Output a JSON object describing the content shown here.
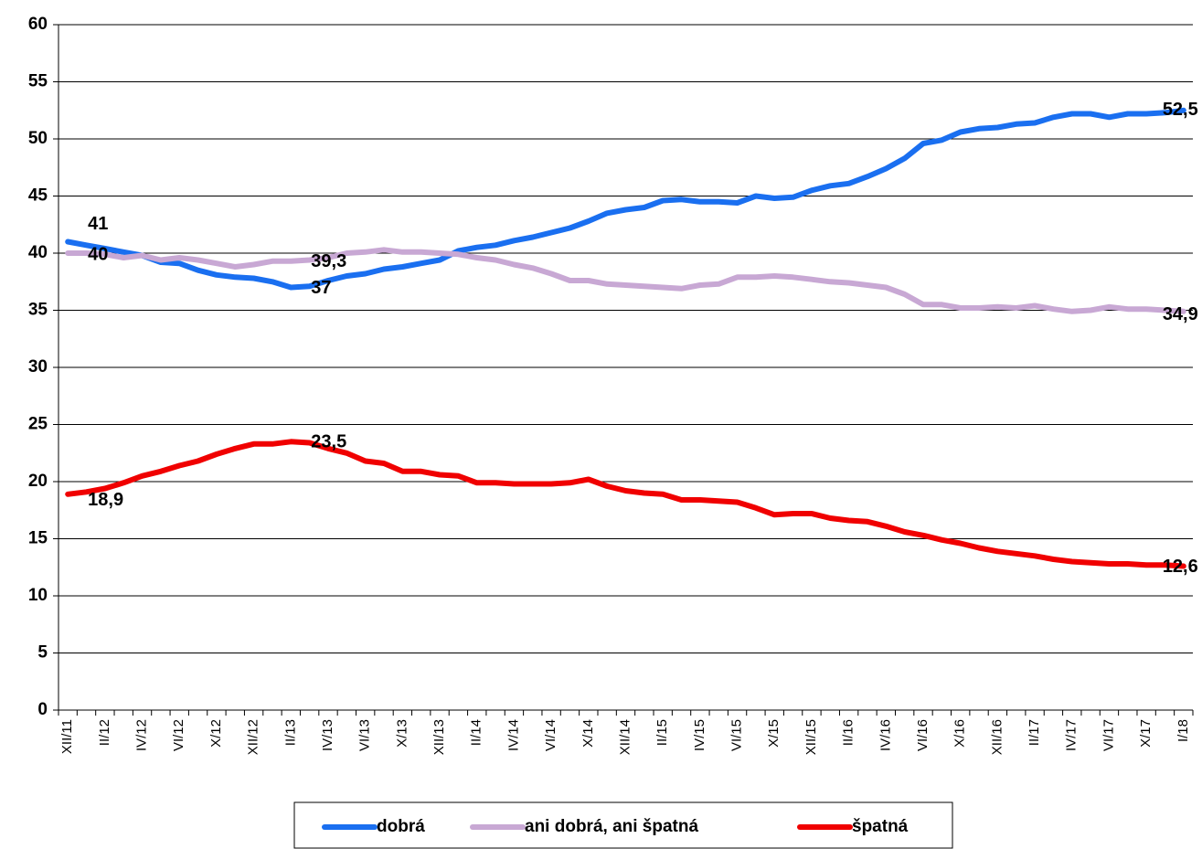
{
  "chart_data": {
    "type": "line",
    "categories": [
      "XII/11",
      null,
      "II/12",
      null,
      "IV/12",
      null,
      "VI/12",
      null,
      "X/12",
      null,
      "XII/12",
      null,
      "II/13",
      null,
      "IV/13",
      null,
      "VI/13",
      null,
      "X/13",
      null,
      "XII/13",
      null,
      "II/14",
      null,
      "IV/14",
      null,
      "VI/14",
      null,
      "X/14",
      null,
      "XII/14",
      null,
      "II/15",
      null,
      "IV/15",
      null,
      "VI/15",
      null,
      "X/15",
      null,
      "XII/15",
      null,
      "II/16",
      null,
      "IV/16",
      null,
      "VI/16",
      null,
      "X/16",
      null,
      "XII/16",
      null,
      "II/17",
      null,
      "IV/17",
      null,
      "VI/17",
      null,
      "X/17",
      null,
      "I/18"
    ],
    "series": [
      {
        "name": "dobrá",
        "color": "#1a6ff0",
        "values": [
          41,
          40.7,
          40.4,
          40.1,
          39.8,
          39.2,
          39.1,
          38.5,
          38.1,
          37.9,
          37.8,
          37.5,
          37.0,
          37.1,
          37.6,
          38.0,
          38.2,
          38.6,
          38.8,
          39.1,
          39.4,
          40.2,
          40.5,
          40.7,
          41.1,
          41.4,
          41.8,
          42.2,
          42.8,
          43.5,
          43.8,
          44.0,
          44.6,
          44.7,
          44.5,
          44.5,
          44.4,
          45.0,
          44.8,
          44.9,
          45.5,
          45.9,
          46.1,
          46.7,
          47.4,
          48.3,
          49.6,
          49.9,
          50.6,
          50.9,
          51.0,
          51.3,
          51.4,
          51.9,
          52.2,
          52.2,
          51.9,
          52.2,
          52.2,
          52.3,
          52.5
        ],
        "labels": [
          {
            "index": 0,
            "text": "41"
          },
          {
            "index": 12,
            "text": "37"
          },
          {
            "index": 60,
            "text": "52,5"
          }
        ]
      },
      {
        "name": "ani dobrá, ani špatná",
        "color": "#c8a8d4",
        "values": [
          40,
          40,
          39.9,
          39.6,
          39.8,
          39.4,
          39.6,
          39.4,
          39.1,
          38.8,
          39.0,
          39.3,
          39.3,
          39.4,
          39.6,
          40.0,
          40.1,
          40.3,
          40.1,
          40.1,
          40.0,
          39.9,
          39.6,
          39.4,
          39.0,
          38.7,
          38.2,
          37.6,
          37.6,
          37.3,
          37.2,
          37.1,
          37.0,
          36.9,
          37.2,
          37.3,
          37.9,
          37.9,
          38.0,
          37.9,
          37.7,
          37.5,
          37.4,
          37.2,
          37.0,
          36.4,
          35.5,
          35.5,
          35.2,
          35.2,
          35.3,
          35.2,
          35.4,
          35.1,
          34.9,
          35.0,
          35.3,
          35.1,
          35.1,
          35.0,
          34.9
        ],
        "labels": [
          {
            "index": 0,
            "text": "40"
          },
          {
            "index": 12,
            "text": "39,3"
          },
          {
            "index": 60,
            "text": "34,9"
          }
        ]
      },
      {
        "name": "špatná",
        "color": "#f00000",
        "values": [
          18.9,
          19.1,
          19.4,
          19.9,
          20.5,
          20.9,
          21.4,
          21.8,
          22.4,
          22.9,
          23.3,
          23.3,
          23.5,
          23.4,
          22.9,
          22.5,
          21.8,
          21.6,
          20.9,
          20.9,
          20.6,
          20.5,
          19.9,
          19.9,
          19.8,
          19.8,
          19.8,
          19.9,
          20.2,
          19.6,
          19.2,
          19.0,
          18.9,
          18.4,
          18.4,
          18.3,
          18.2,
          17.7,
          17.1,
          17.2,
          17.2,
          16.8,
          16.6,
          16.5,
          16.1,
          15.6,
          15.3,
          14.9,
          14.6,
          14.2,
          13.9,
          13.7,
          13.5,
          13.2,
          13.0,
          12.9,
          12.8,
          12.8,
          12.7,
          12.7,
          12.6
        ],
        "labels": [
          {
            "index": 0,
            "text": "18,9"
          },
          {
            "index": 12,
            "text": "23,5"
          },
          {
            "index": 60,
            "text": "12,6"
          }
        ]
      }
    ],
    "ylim": [
      0,
      60
    ],
    "yticks": [
      0,
      5,
      10,
      15,
      20,
      25,
      30,
      35,
      40,
      45,
      50,
      55,
      60
    ],
    "grid": true,
    "legend": "bottom"
  }
}
